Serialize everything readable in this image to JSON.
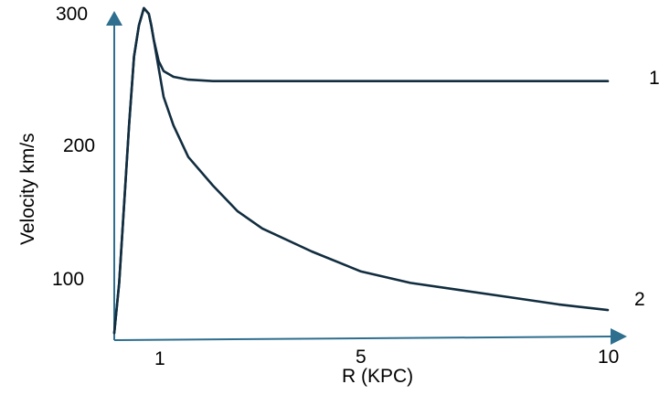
{
  "chart_data": {
    "type": "line",
    "title": "",
    "xlabel": "R (KPC)",
    "ylabel": "Velocity km/s",
    "x_ticks": [
      "1",
      "5",
      "10"
    ],
    "y_ticks": [
      "300",
      "200",
      "100"
    ],
    "xlim": [
      0,
      10
    ],
    "ylim": [
      70,
      300
    ],
    "grid": false,
    "axis_color": "#2e6e8e",
    "series": [
      {
        "name": "1",
        "color": "#112d3f",
        "points": [
          [
            0.0,
            75
          ],
          [
            0.1,
            110
          ],
          [
            0.3,
            220
          ],
          [
            0.4,
            268
          ],
          [
            0.5,
            290
          ],
          [
            0.6,
            302
          ],
          [
            0.7,
            298
          ],
          [
            0.75,
            290
          ],
          [
            0.8,
            280
          ],
          [
            0.9,
            265
          ],
          [
            1.0,
            258
          ],
          [
            1.2,
            254
          ],
          [
            1.5,
            252
          ],
          [
            2.0,
            251
          ],
          [
            3.0,
            251
          ],
          [
            5.0,
            251
          ],
          [
            7.5,
            251
          ],
          [
            10.0,
            251
          ]
        ]
      },
      {
        "name": "2",
        "color": "#112d3f",
        "points": [
          [
            0.0,
            75
          ],
          [
            0.1,
            110
          ],
          [
            0.3,
            220
          ],
          [
            0.4,
            268
          ],
          [
            0.5,
            290
          ],
          [
            0.6,
            302
          ],
          [
            0.7,
            298
          ],
          [
            0.75,
            290
          ],
          [
            0.8,
            280
          ],
          [
            1.0,
            240
          ],
          [
            1.2,
            220
          ],
          [
            1.5,
            198
          ],
          [
            2.0,
            178
          ],
          [
            2.5,
            160
          ],
          [
            3.0,
            148
          ],
          [
            4.0,
            132
          ],
          [
            5.0,
            118
          ],
          [
            6.0,
            110
          ],
          [
            7.0,
            105
          ],
          [
            8.0,
            100
          ],
          [
            9.0,
            95
          ],
          [
            10.0,
            91
          ]
        ]
      }
    ]
  }
}
